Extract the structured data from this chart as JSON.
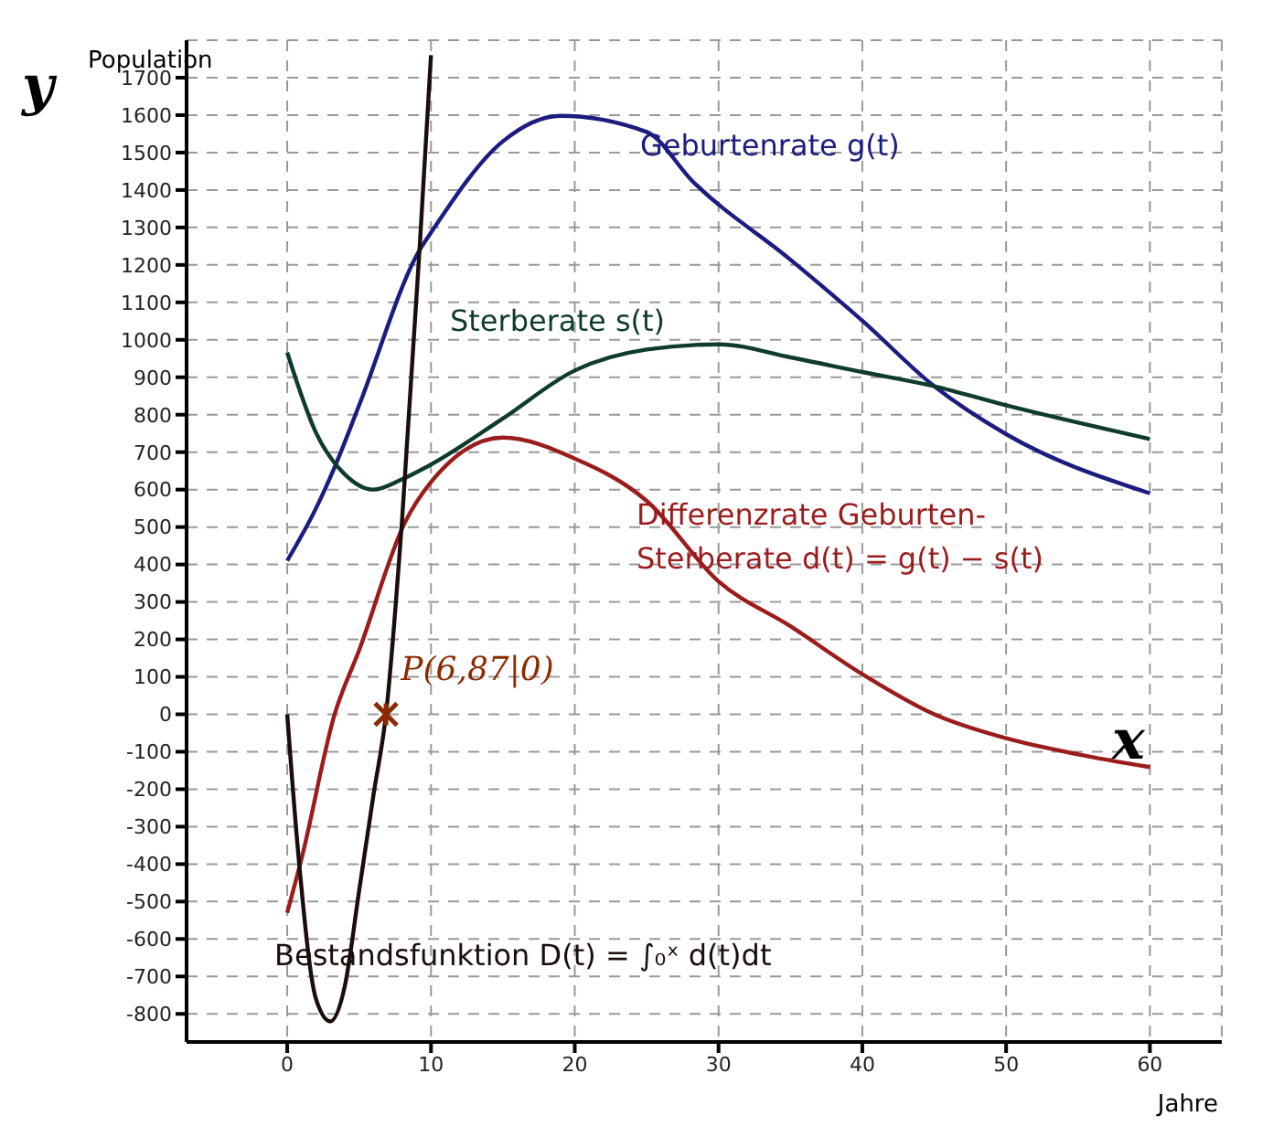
{
  "chart_data": {
    "type": "line",
    "xlabel": "Jahre",
    "ylabel": "Population",
    "xlim": [
      -7,
      65
    ],
    "ylim": [
      -875,
      1800
    ],
    "xticks": [
      0,
      10,
      20,
      30,
      40,
      50,
      60
    ],
    "yticks": [
      -800,
      -700,
      -600,
      -500,
      -400,
      -300,
      -200,
      -100,
      0,
      100,
      200,
      300,
      400,
      500,
      600,
      700,
      800,
      900,
      1000,
      1100,
      1200,
      1300,
      1400,
      1500,
      1600,
      1700
    ],
    "grid": true,
    "annotations": [
      "y",
      "x"
    ],
    "series": [
      {
        "name": "Geburtenrate g(t)",
        "color": "#1c1c80",
        "x": [
          0,
          2,
          3.3,
          5,
          9.2,
          10,
          15,
          19,
          25,
          28.2,
          35,
          40,
          45,
          50,
          60
        ],
        "values": [
          410,
          550,
          660,
          825,
          1239,
          1286,
          1530,
          1598,
          1555,
          1423,
          1214,
          1051,
          876,
          748,
          590
        ]
      },
      {
        "name": "Sterberate s(t)",
        "color": "#0f3a2c",
        "x": [
          0,
          2,
          4,
          6,
          8,
          10,
          15,
          20,
          25,
          30,
          35,
          40,
          45,
          50,
          60
        ],
        "values": [
          966,
          752,
          641,
          600,
          628,
          667,
          790,
          918,
          974,
          988,
          953,
          914,
          876,
          825,
          735
        ]
      },
      {
        "name": "Differenzrate Geburten-Sterberate d(t) = g(t) − s(t)",
        "color": "#9b1c1c",
        "x": [
          0,
          1,
          3.3,
          5,
          8.2,
          10,
          15,
          20,
          25,
          30,
          35,
          40,
          45,
          50,
          55,
          60
        ],
        "values": [
          -530,
          -385,
          0,
          171,
          513,
          620,
          739,
          683,
          570,
          355,
          235,
          107,
          0,
          -64,
          -107,
          -141
        ]
      },
      {
        "name": "Bestandsfunktion D(t) = ∫₀ˣ d(t)dt",
        "color": "#1a0d0a",
        "x": [
          0,
          0.8,
          2,
          3,
          4,
          5,
          6,
          6.87,
          8,
          9.2,
          10
        ],
        "values": [
          0,
          -385,
          -760,
          -820,
          -727,
          -472,
          -215,
          0,
          525,
          1239,
          1760
        ]
      },
      {
        "name": "P(6,87|0)",
        "type": "scatter",
        "marker": "cross",
        "color": "#8b2a00",
        "x": [
          6.87
        ],
        "values": [
          0
        ]
      }
    ]
  }
}
